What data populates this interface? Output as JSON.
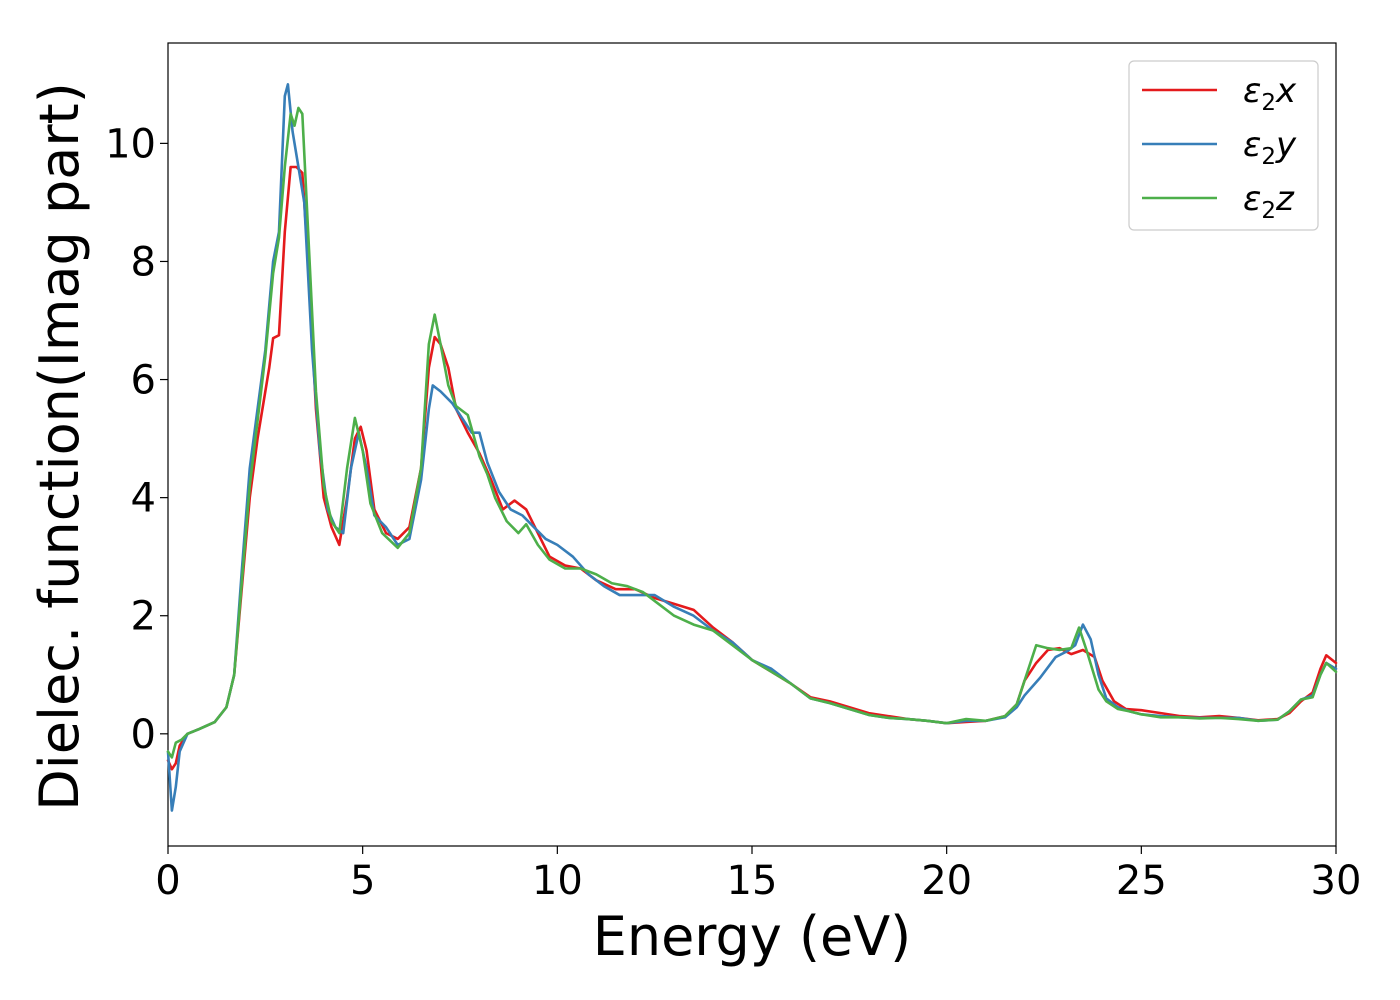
{
  "chart_data": {
    "type": "line",
    "title": "",
    "xlabel": "Energy (eV)",
    "ylabel": "Dielec. function(Imag part)",
    "xlim": [
      0,
      30
    ],
    "ylim": [
      -1.9,
      11.7
    ],
    "xticks": [
      0,
      5,
      10,
      15,
      20,
      25,
      30
    ],
    "yticks": [
      0,
      2,
      4,
      6,
      8,
      10
    ],
    "grid": false,
    "legend_position": "top-right",
    "series": [
      {
        "name": "ε2x",
        "legend_main": "ε",
        "legend_sub": "2",
        "legend_suffix": "x",
        "color": "#e41a1c",
        "points": [
          [
            0.0,
            -0.45
          ],
          [
            0.1,
            -0.6
          ],
          [
            0.2,
            -0.5
          ],
          [
            0.3,
            -0.2
          ],
          [
            0.5,
            0.0
          ],
          [
            0.8,
            0.08
          ],
          [
            1.2,
            0.2
          ],
          [
            1.5,
            0.45
          ],
          [
            1.7,
            1.0
          ],
          [
            1.9,
            2.5
          ],
          [
            2.1,
            4.0
          ],
          [
            2.3,
            5.0
          ],
          [
            2.5,
            5.8
          ],
          [
            2.6,
            6.2
          ],
          [
            2.7,
            6.7
          ],
          [
            2.85,
            6.75
          ],
          [
            3.0,
            8.5
          ],
          [
            3.15,
            9.6
          ],
          [
            3.3,
            9.6
          ],
          [
            3.45,
            9.5
          ],
          [
            3.6,
            8.0
          ],
          [
            3.8,
            5.5
          ],
          [
            4.0,
            4.0
          ],
          [
            4.2,
            3.5
          ],
          [
            4.4,
            3.2
          ],
          [
            4.6,
            4.0
          ],
          [
            4.8,
            5.0
          ],
          [
            4.95,
            5.2
          ],
          [
            5.1,
            4.8
          ],
          [
            5.3,
            3.8
          ],
          [
            5.6,
            3.4
          ],
          [
            5.9,
            3.3
          ],
          [
            6.2,
            3.5
          ],
          [
            6.5,
            4.5
          ],
          [
            6.7,
            6.2
          ],
          [
            6.85,
            6.72
          ],
          [
            7.0,
            6.6
          ],
          [
            7.2,
            6.2
          ],
          [
            7.4,
            5.5
          ],
          [
            7.7,
            5.1
          ],
          [
            8.0,
            4.75
          ],
          [
            8.3,
            4.3
          ],
          [
            8.6,
            3.8
          ],
          [
            8.9,
            3.95
          ],
          [
            9.2,
            3.8
          ],
          [
            9.5,
            3.4
          ],
          [
            9.8,
            3.0
          ],
          [
            10.2,
            2.85
          ],
          [
            10.6,
            2.8
          ],
          [
            11.0,
            2.6
          ],
          [
            11.5,
            2.45
          ],
          [
            12.0,
            2.45
          ],
          [
            12.5,
            2.3
          ],
          [
            13.0,
            2.2
          ],
          [
            13.5,
            2.1
          ],
          [
            14.0,
            1.8
          ],
          [
            14.5,
            1.55
          ],
          [
            15.0,
            1.25
          ],
          [
            15.5,
            1.05
          ],
          [
            16.0,
            0.85
          ],
          [
            16.5,
            0.62
          ],
          [
            17.0,
            0.55
          ],
          [
            17.5,
            0.45
          ],
          [
            18.0,
            0.35
          ],
          [
            18.5,
            0.3
          ],
          [
            19.0,
            0.25
          ],
          [
            19.5,
            0.22
          ],
          [
            20.0,
            0.18
          ],
          [
            20.5,
            0.2
          ],
          [
            21.0,
            0.22
          ],
          [
            21.5,
            0.3
          ],
          [
            21.8,
            0.5
          ],
          [
            22.0,
            0.9
          ],
          [
            22.3,
            1.2
          ],
          [
            22.6,
            1.42
          ],
          [
            22.9,
            1.45
          ],
          [
            23.2,
            1.35
          ],
          [
            23.5,
            1.42
          ],
          [
            23.8,
            1.3
          ],
          [
            24.0,
            0.9
          ],
          [
            24.3,
            0.55
          ],
          [
            24.6,
            0.42
          ],
          [
            25.0,
            0.4
          ],
          [
            25.5,
            0.35
          ],
          [
            26.0,
            0.3
          ],
          [
            26.5,
            0.28
          ],
          [
            27.0,
            0.3
          ],
          [
            27.5,
            0.27
          ],
          [
            28.0,
            0.23
          ],
          [
            28.5,
            0.25
          ],
          [
            28.8,
            0.35
          ],
          [
            29.1,
            0.55
          ],
          [
            29.4,
            0.7
          ],
          [
            29.6,
            1.1
          ],
          [
            29.75,
            1.33
          ],
          [
            30.0,
            1.2
          ]
        ]
      },
      {
        "name": "ε2y",
        "legend_main": "ε",
        "legend_sub": "2",
        "legend_suffix": "y",
        "color": "#377eb8",
        "points": [
          [
            0.0,
            -0.3
          ],
          [
            0.1,
            -1.3
          ],
          [
            0.2,
            -0.9
          ],
          [
            0.3,
            -0.3
          ],
          [
            0.5,
            0.0
          ],
          [
            0.8,
            0.08
          ],
          [
            1.2,
            0.2
          ],
          [
            1.5,
            0.45
          ],
          [
            1.7,
            1.0
          ],
          [
            1.9,
            2.8
          ],
          [
            2.1,
            4.5
          ],
          [
            2.3,
            5.5
          ],
          [
            2.5,
            6.5
          ],
          [
            2.7,
            8.0
          ],
          [
            2.85,
            8.5
          ],
          [
            3.0,
            10.8
          ],
          [
            3.08,
            11.0
          ],
          [
            3.2,
            10.2
          ],
          [
            3.35,
            9.6
          ],
          [
            3.5,
            9.0
          ],
          [
            3.7,
            6.5
          ],
          [
            3.9,
            4.8
          ],
          [
            4.1,
            3.8
          ],
          [
            4.3,
            3.5
          ],
          [
            4.5,
            3.4
          ],
          [
            4.7,
            4.5
          ],
          [
            4.9,
            5.1
          ],
          [
            5.1,
            4.5
          ],
          [
            5.3,
            3.7
          ],
          [
            5.6,
            3.5
          ],
          [
            5.9,
            3.2
          ],
          [
            6.2,
            3.3
          ],
          [
            6.5,
            4.3
          ],
          [
            6.7,
            5.5
          ],
          [
            6.8,
            5.9
          ],
          [
            7.0,
            5.8
          ],
          [
            7.3,
            5.6
          ],
          [
            7.6,
            5.3
          ],
          [
            7.8,
            5.1
          ],
          [
            8.0,
            5.1
          ],
          [
            8.2,
            4.6
          ],
          [
            8.5,
            4.1
          ],
          [
            8.8,
            3.8
          ],
          [
            9.1,
            3.7
          ],
          [
            9.4,
            3.5
          ],
          [
            9.7,
            3.3
          ],
          [
            10.0,
            3.2
          ],
          [
            10.4,
            3.0
          ],
          [
            10.8,
            2.7
          ],
          [
            11.2,
            2.5
          ],
          [
            11.6,
            2.35
          ],
          [
            12.0,
            2.35
          ],
          [
            12.5,
            2.35
          ],
          [
            13.0,
            2.15
          ],
          [
            13.5,
            2.0
          ],
          [
            14.0,
            1.75
          ],
          [
            14.5,
            1.55
          ],
          [
            15.0,
            1.25
          ],
          [
            15.5,
            1.1
          ],
          [
            16.0,
            0.85
          ],
          [
            16.5,
            0.6
          ],
          [
            17.0,
            0.52
          ],
          [
            17.5,
            0.42
          ],
          [
            18.0,
            0.32
          ],
          [
            18.5,
            0.27
          ],
          [
            19.0,
            0.25
          ],
          [
            19.5,
            0.22
          ],
          [
            20.0,
            0.18
          ],
          [
            20.5,
            0.22
          ],
          [
            21.0,
            0.22
          ],
          [
            21.5,
            0.28
          ],
          [
            21.8,
            0.45
          ],
          [
            22.0,
            0.65
          ],
          [
            22.4,
            0.95
          ],
          [
            22.8,
            1.3
          ],
          [
            23.1,
            1.4
          ],
          [
            23.3,
            1.5
          ],
          [
            23.5,
            1.85
          ],
          [
            23.7,
            1.6
          ],
          [
            23.9,
            1.0
          ],
          [
            24.1,
            0.6
          ],
          [
            24.4,
            0.45
          ],
          [
            24.7,
            0.38
          ],
          [
            25.0,
            0.33
          ],
          [
            25.5,
            0.3
          ],
          [
            26.0,
            0.28
          ],
          [
            26.5,
            0.27
          ],
          [
            27.0,
            0.27
          ],
          [
            27.5,
            0.27
          ],
          [
            28.0,
            0.22
          ],
          [
            28.5,
            0.24
          ],
          [
            28.8,
            0.38
          ],
          [
            29.1,
            0.58
          ],
          [
            29.4,
            0.65
          ],
          [
            29.6,
            1.0
          ],
          [
            29.75,
            1.2
          ],
          [
            30.0,
            1.1
          ]
        ]
      },
      {
        "name": "ε2z",
        "legend_main": "ε",
        "legend_sub": "2",
        "legend_suffix": "z",
        "color": "#4daf4a",
        "points": [
          [
            0.0,
            -0.3
          ],
          [
            0.1,
            -0.4
          ],
          [
            0.2,
            -0.15
          ],
          [
            0.35,
            -0.1
          ],
          [
            0.5,
            0.0
          ],
          [
            0.8,
            0.08
          ],
          [
            1.2,
            0.2
          ],
          [
            1.5,
            0.45
          ],
          [
            1.7,
            1.0
          ],
          [
            1.9,
            2.6
          ],
          [
            2.1,
            4.2
          ],
          [
            2.3,
            5.3
          ],
          [
            2.5,
            6.4
          ],
          [
            2.7,
            7.8
          ],
          [
            2.85,
            8.4
          ],
          [
            3.0,
            9.6
          ],
          [
            3.15,
            10.5
          ],
          [
            3.25,
            10.3
          ],
          [
            3.35,
            10.6
          ],
          [
            3.45,
            10.5
          ],
          [
            3.6,
            8.5
          ],
          [
            3.8,
            5.8
          ],
          [
            4.0,
            4.2
          ],
          [
            4.2,
            3.6
          ],
          [
            4.4,
            3.4
          ],
          [
            4.6,
            4.5
          ],
          [
            4.8,
            5.35
          ],
          [
            5.0,
            4.8
          ],
          [
            5.2,
            3.9
          ],
          [
            5.5,
            3.4
          ],
          [
            5.9,
            3.15
          ],
          [
            6.2,
            3.4
          ],
          [
            6.5,
            4.5
          ],
          [
            6.7,
            6.6
          ],
          [
            6.85,
            7.1
          ],
          [
            7.0,
            6.6
          ],
          [
            7.2,
            5.9
          ],
          [
            7.4,
            5.55
          ],
          [
            7.7,
            5.4
          ],
          [
            8.0,
            4.7
          ],
          [
            8.2,
            4.4
          ],
          [
            8.4,
            4.0
          ],
          [
            8.7,
            3.6
          ],
          [
            9.0,
            3.4
          ],
          [
            9.2,
            3.55
          ],
          [
            9.5,
            3.2
          ],
          [
            9.8,
            2.95
          ],
          [
            10.2,
            2.8
          ],
          [
            10.6,
            2.8
          ],
          [
            11.0,
            2.7
          ],
          [
            11.4,
            2.55
          ],
          [
            11.8,
            2.5
          ],
          [
            12.2,
            2.4
          ],
          [
            12.6,
            2.2
          ],
          [
            13.0,
            2.0
          ],
          [
            13.5,
            1.85
          ],
          [
            14.0,
            1.75
          ],
          [
            14.5,
            1.5
          ],
          [
            15.0,
            1.25
          ],
          [
            15.5,
            1.05
          ],
          [
            16.0,
            0.85
          ],
          [
            16.5,
            0.6
          ],
          [
            17.0,
            0.52
          ],
          [
            17.5,
            0.42
          ],
          [
            18.0,
            0.32
          ],
          [
            18.5,
            0.27
          ],
          [
            19.0,
            0.25
          ],
          [
            19.5,
            0.22
          ],
          [
            20.0,
            0.18
          ],
          [
            20.5,
            0.25
          ],
          [
            21.0,
            0.22
          ],
          [
            21.5,
            0.3
          ],
          [
            21.8,
            0.5
          ],
          [
            22.0,
            0.9
          ],
          [
            22.3,
            1.5
          ],
          [
            22.6,
            1.45
          ],
          [
            22.9,
            1.42
          ],
          [
            23.2,
            1.45
          ],
          [
            23.4,
            1.8
          ],
          [
            23.6,
            1.4
          ],
          [
            23.9,
            0.75
          ],
          [
            24.1,
            0.55
          ],
          [
            24.4,
            0.42
          ],
          [
            24.7,
            0.38
          ],
          [
            25.0,
            0.33
          ],
          [
            25.5,
            0.28
          ],
          [
            26.0,
            0.28
          ],
          [
            26.5,
            0.26
          ],
          [
            27.0,
            0.27
          ],
          [
            27.5,
            0.25
          ],
          [
            28.0,
            0.22
          ],
          [
            28.5,
            0.24
          ],
          [
            28.8,
            0.38
          ],
          [
            29.1,
            0.58
          ],
          [
            29.4,
            0.62
          ],
          [
            29.6,
            1.0
          ],
          [
            29.75,
            1.2
          ],
          [
            30.0,
            1.05
          ]
        ]
      }
    ]
  }
}
